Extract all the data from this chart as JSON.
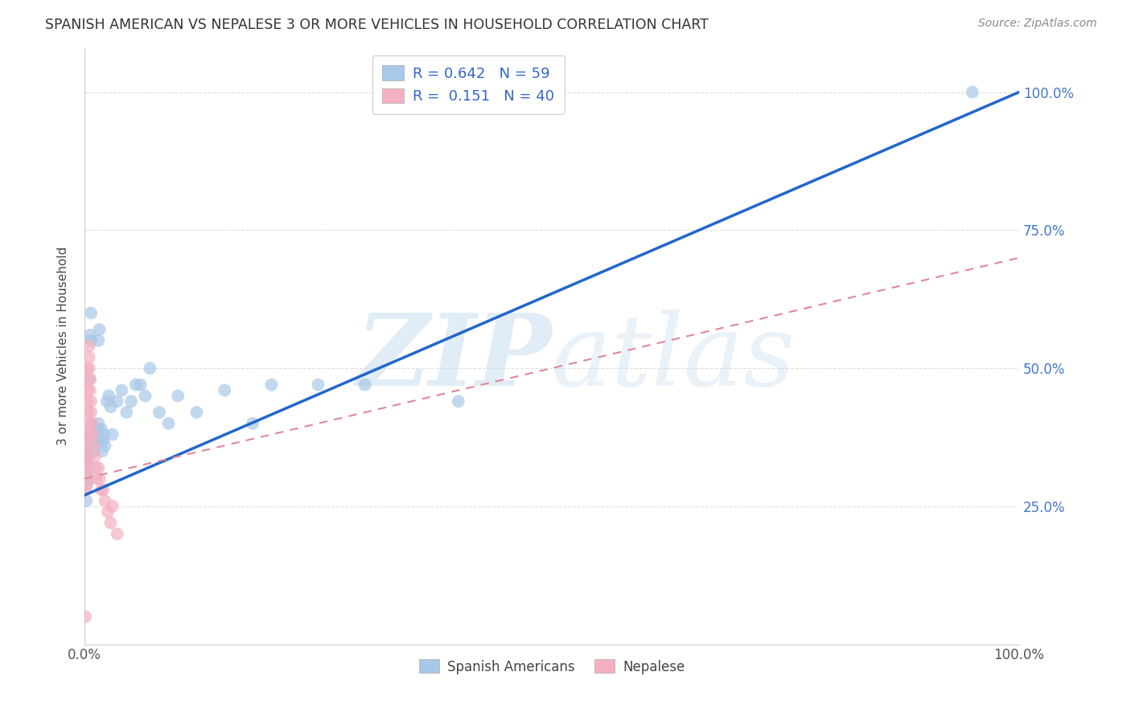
{
  "title": "SPANISH AMERICAN VS NEPALESE 3 OR MORE VEHICLES IN HOUSEHOLD CORRELATION CHART",
  "source": "Source: ZipAtlas.com",
  "ylabel": "3 or more Vehicles in Household",
  "legend1_r": "0.642",
  "legend1_n": "59",
  "legend2_r": "0.151",
  "legend2_n": "40",
  "blue_color": "#a8c8e8",
  "pink_color": "#f4b0c0",
  "blue_line_color": "#2266cc",
  "pink_line_color": "#e08898",
  "blue_scatter_x": [
    0.001,
    0.001,
    0.002,
    0.002,
    0.002,
    0.003,
    0.003,
    0.003,
    0.004,
    0.004,
    0.005,
    0.005,
    0.005,
    0.006,
    0.006,
    0.007,
    0.007,
    0.008,
    0.008,
    0.009,
    0.009,
    0.01,
    0.01,
    0.011,
    0.012,
    0.013,
    0.014,
    0.015,
    0.015,
    0.016,
    0.017,
    0.018,
    0.019,
    0.02,
    0.021,
    0.022,
    0.024,
    0.026,
    0.028,
    0.03,
    0.035,
    0.04,
    0.045,
    0.05,
    0.055,
    0.06,
    0.065,
    0.07,
    0.08,
    0.09,
    0.1,
    0.12,
    0.15,
    0.18,
    0.2,
    0.25,
    0.3,
    0.4,
    0.95
  ],
  "blue_scatter_y": [
    0.32,
    0.28,
    0.3,
    0.35,
    0.26,
    0.33,
    0.31,
    0.29,
    0.34,
    0.3,
    0.38,
    0.36,
    0.32,
    0.56,
    0.48,
    0.6,
    0.55,
    0.37,
    0.4,
    0.38,
    0.36,
    0.35,
    0.39,
    0.37,
    0.37,
    0.39,
    0.38,
    0.4,
    0.55,
    0.57,
    0.37,
    0.39,
    0.35,
    0.37,
    0.38,
    0.36,
    0.44,
    0.45,
    0.43,
    0.38,
    0.44,
    0.46,
    0.42,
    0.44,
    0.47,
    0.47,
    0.45,
    0.5,
    0.42,
    0.4,
    0.45,
    0.42,
    0.46,
    0.4,
    0.47,
    0.47,
    0.47,
    0.44,
    1.0
  ],
  "pink_scatter_x": [
    0.001,
    0.001,
    0.001,
    0.001,
    0.001,
    0.002,
    0.002,
    0.002,
    0.002,
    0.002,
    0.003,
    0.003,
    0.003,
    0.003,
    0.004,
    0.004,
    0.004,
    0.005,
    0.005,
    0.005,
    0.006,
    0.006,
    0.007,
    0.007,
    0.008,
    0.009,
    0.01,
    0.011,
    0.012,
    0.013,
    0.015,
    0.016,
    0.018,
    0.02,
    0.022,
    0.025,
    0.028,
    0.03,
    0.035,
    0.001
  ],
  "pink_scatter_y": [
    0.32,
    0.3,
    0.34,
    0.36,
    0.28,
    0.35,
    0.33,
    0.31,
    0.38,
    0.29,
    0.5,
    0.48,
    0.46,
    0.44,
    0.42,
    0.4,
    0.38,
    0.54,
    0.52,
    0.5,
    0.48,
    0.46,
    0.44,
    0.42,
    0.4,
    0.38,
    0.36,
    0.34,
    0.32,
    0.3,
    0.32,
    0.3,
    0.28,
    0.28,
    0.26,
    0.24,
    0.22,
    0.25,
    0.2,
    0.05
  ],
  "blue_line_x": [
    0.0,
    1.0
  ],
  "blue_line_y": [
    0.27,
    1.0
  ],
  "pink_line_x": [
    0.0,
    1.0
  ],
  "pink_line_y": [
    0.3,
    0.7
  ],
  "xlim": [
    0.0,
    1.0
  ],
  "ylim": [
    0.0,
    1.08
  ],
  "yticks": [
    0.25,
    0.5,
    0.75,
    1.0
  ],
  "ytick_labels": [
    "25.0%",
    "50.0%",
    "75.0%",
    "100.0%"
  ],
  "xtick_positions": [
    0.0,
    1.0
  ],
  "xtick_labels": [
    "0.0%",
    "100.0%"
  ],
  "grid_color": "#dddddd",
  "spine_color": "#cccccc",
  "tick_label_color": "#4477cc",
  "background_color": "#ffffff"
}
